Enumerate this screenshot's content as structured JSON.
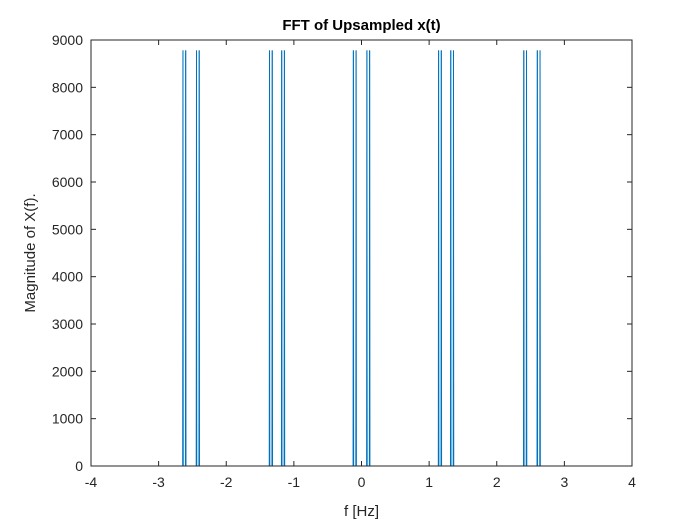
{
  "chart_data": {
    "type": "line",
    "title": "FFT of Upsampled x(t)",
    "xlabel": "f [Hz]",
    "ylabel": "Magnitude of X(f).",
    "xlim": [
      -4,
      4
    ],
    "ylim": [
      0,
      9000
    ],
    "xticks": [
      -4,
      -3,
      -2,
      -1,
      0,
      1,
      2,
      3,
      4
    ],
    "yticks": [
      0,
      1000,
      2000,
      3000,
      4000,
      5000,
      6000,
      7000,
      8000,
      9000
    ],
    "x_range": [
      -3.14,
      3.14
    ],
    "grid": false,
    "line_color": "#0072BD",
    "series": [
      {
        "peaks": [
          {
            "x": -2.64,
            "y": 8780
          },
          {
            "x": -2.6,
            "y": 8780
          },
          {
            "x": -2.44,
            "y": 8780
          },
          {
            "x": -2.4,
            "y": 8780
          },
          {
            "x": -1.36,
            "y": 8780
          },
          {
            "x": -1.32,
            "y": 8780
          },
          {
            "x": -1.18,
            "y": 8780
          },
          {
            "x": -1.14,
            "y": 8780
          },
          {
            "x": -0.12,
            "y": 8780
          },
          {
            "x": -0.08,
            "y": 8780
          },
          {
            "x": 0.08,
            "y": 8780
          },
          {
            "x": 0.12,
            "y": 8780
          },
          {
            "x": 1.14,
            "y": 8780
          },
          {
            "x": 1.18,
            "y": 8780
          },
          {
            "x": 1.32,
            "y": 8780
          },
          {
            "x": 1.36,
            "y": 8780
          },
          {
            "x": 2.4,
            "y": 8780
          },
          {
            "x": 2.44,
            "y": 8780
          },
          {
            "x": 2.6,
            "y": 8780
          },
          {
            "x": 2.64,
            "y": 8780
          }
        ]
      }
    ]
  }
}
